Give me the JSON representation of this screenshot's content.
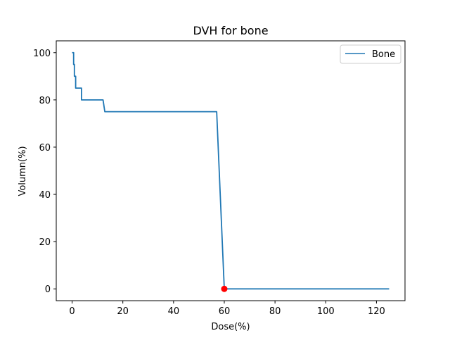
{
  "chart_data": {
    "type": "line",
    "title": "DVH for bone",
    "xlabel": "Dose(%)",
    "ylabel": "Volumn(%)",
    "xlim": [
      -6.25,
      131.25
    ],
    "ylim": [
      -5,
      105
    ],
    "xticks": [
      0,
      20,
      40,
      60,
      80,
      100,
      120
    ],
    "yticks": [
      0,
      20,
      40,
      60,
      80,
      100
    ],
    "legend_position": "top-right",
    "colors": {
      "series": "#1f77b4",
      "marker": "#ff0000"
    },
    "series": [
      {
        "name": "Bone",
        "x": [
          0,
          0.6,
          0.6,
          0.9,
          0.9,
          1.4,
          1.4,
          2.3,
          2.3,
          3.7,
          3.7,
          12.2,
          12.9,
          57,
          58,
          60,
          125
        ],
        "y": [
          100,
          100,
          95,
          95,
          90,
          90,
          85,
          85,
          85,
          85,
          80,
          80,
          75,
          75,
          50,
          0,
          0
        ]
      }
    ],
    "markers": [
      {
        "x": 60,
        "y": 0
      }
    ]
  }
}
